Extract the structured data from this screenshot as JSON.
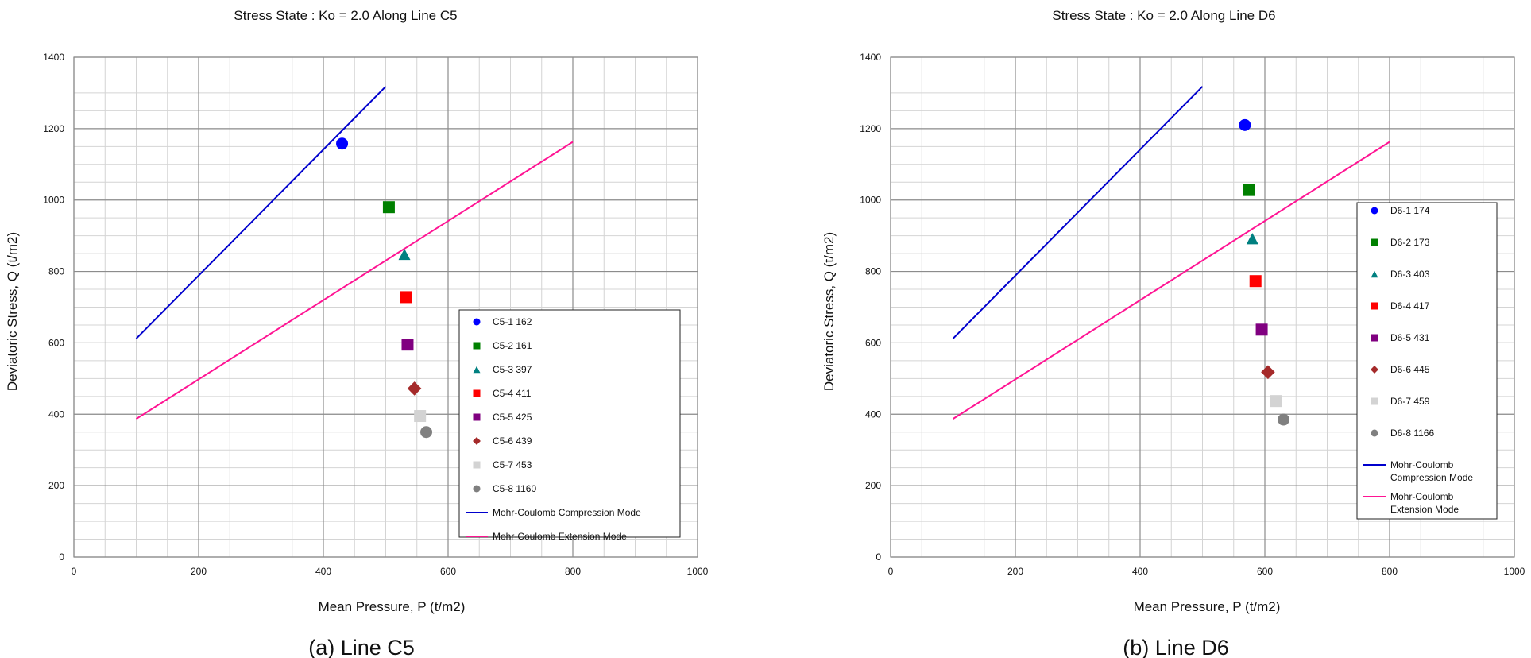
{
  "chart_data": [
    {
      "type": "scatter",
      "title": "Stress State : Ko = 2.0   Along Line C5",
      "xlabel": "Mean Pressure, P (t/m2)",
      "ylabel": "Deviatoric Stress, Q (t/m2)",
      "caption": "(a) Line C5",
      "xlim": [
        0,
        1000
      ],
      "ylim": [
        0,
        1400
      ],
      "xticks": [
        0,
        200,
        400,
        600,
        800,
        1000
      ],
      "yticks": [
        0,
        200,
        400,
        600,
        800,
        1000,
        1200,
        1400
      ],
      "grid": true,
      "legend_position": "lower-right",
      "series": [
        {
          "name": "C5-1 162",
          "marker": "circle",
          "color": "#0000ff",
          "x": [
            430
          ],
          "y": [
            1158
          ]
        },
        {
          "name": "C5-2 161",
          "marker": "square",
          "color": "#008000",
          "x": [
            505
          ],
          "y": [
            980
          ]
        },
        {
          "name": "C5-3 397",
          "marker": "triangle",
          "color": "#008080",
          "x": [
            530
          ],
          "y": [
            848
          ]
        },
        {
          "name": "C5-4 411",
          "marker": "square",
          "color": "#ff0000",
          "x": [
            533
          ],
          "y": [
            728
          ]
        },
        {
          "name": "C5-5 425",
          "marker": "square",
          "color": "#800080",
          "x": [
            535
          ],
          "y": [
            595
          ]
        },
        {
          "name": "C5-6 439",
          "marker": "diamond",
          "color": "#a52a2a",
          "x": [
            546
          ],
          "y": [
            472
          ]
        },
        {
          "name": "C5-7 453",
          "marker": "square",
          "color": "#d3d3d3",
          "x": [
            555
          ],
          "y": [
            395
          ]
        },
        {
          "name": "C5-8 1160",
          "marker": "circle",
          "color": "#808080",
          "x": [
            565
          ],
          "y": [
            350
          ]
        }
      ],
      "lines": [
        {
          "name": "Mohr-Coulomb  Compression Mode",
          "color": "#0000cd",
          "x": [
            100,
            500
          ],
          "y": [
            612,
            1318
          ]
        },
        {
          "name": "Mohr-Coulomb  Extension Mode",
          "color": "#ff1493",
          "x": [
            100,
            800
          ],
          "y": [
            387,
            1163
          ]
        }
      ]
    },
    {
      "type": "scatter",
      "title": "Stress State : Ko = 2.0   Along Line D6",
      "xlabel": "Mean Pressure, P (t/m2)",
      "ylabel": "Deviatoric Stress, Q (t/m2)",
      "caption": "(b) Line D6",
      "xlim": [
        0,
        1000
      ],
      "ylim": [
        0,
        1400
      ],
      "xticks": [
        0,
        200,
        400,
        600,
        800,
        1000
      ],
      "yticks": [
        0,
        200,
        400,
        600,
        800,
        1000,
        1200,
        1400
      ],
      "grid": true,
      "legend_position": "right",
      "series": [
        {
          "name": "D6-1 174",
          "marker": "circle",
          "color": "#0000ff",
          "x": [
            568
          ],
          "y": [
            1210
          ]
        },
        {
          "name": "D6-2 173",
          "marker": "square",
          "color": "#008000",
          "x": [
            575
          ],
          "y": [
            1028
          ]
        },
        {
          "name": "D6-3 403",
          "marker": "triangle",
          "color": "#008080",
          "x": [
            580
          ],
          "y": [
            892
          ]
        },
        {
          "name": "D6-4 417",
          "marker": "square",
          "color": "#ff0000",
          "x": [
            585
          ],
          "y": [
            773
          ]
        },
        {
          "name": "D6-5 431",
          "marker": "square",
          "color": "#800080",
          "x": [
            595
          ],
          "y": [
            637
          ]
        },
        {
          "name": "D6-6 445",
          "marker": "diamond",
          "color": "#a52a2a",
          "x": [
            605
          ],
          "y": [
            518
          ]
        },
        {
          "name": "D6-7 459",
          "marker": "square",
          "color": "#d3d3d3",
          "x": [
            618
          ],
          "y": [
            437
          ]
        },
        {
          "name": "D6-8 1166",
          "marker": "circle",
          "color": "#808080",
          "x": [
            630
          ],
          "y": [
            385
          ]
        }
      ],
      "lines": [
        {
          "name": "Mohr-Coulomb  Compression Mode",
          "color": "#0000cd",
          "x": [
            100,
            500
          ],
          "y": [
            612,
            1318
          ]
        },
        {
          "name": "Mohr-Coulomb  Extension Mode",
          "color": "#ff1493",
          "x": [
            100,
            800
          ],
          "y": [
            387,
            1163
          ]
        }
      ]
    }
  ]
}
